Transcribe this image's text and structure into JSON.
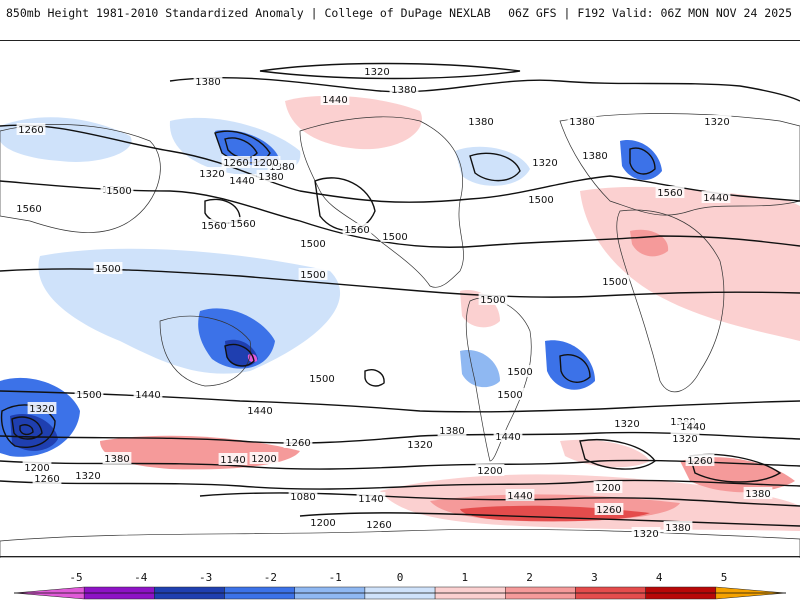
{
  "header": {
    "left_title": "850mb Height 1981-2010 Standardized Anomaly | College of DuPage NEXLAB",
    "right_title": "06Z GFS | F192 Valid: 06Z MON NOV 24 2025"
  },
  "colorbar": {
    "ticks": [
      "-5",
      "-4",
      "-3",
      "-2",
      "-1",
      "0",
      "1",
      "2",
      "3",
      "4",
      "5"
    ],
    "colors": [
      "#e05ad8",
      "#8e12c6",
      "#1f3fb0",
      "#3c72e8",
      "#8fb8f2",
      "#cfe2fa",
      "#fbd0d0",
      "#f59a9a",
      "#e44c4c",
      "#b80808",
      "#f5a200"
    ]
  },
  "map": {
    "contour_labels": [
      "1320",
      "1380",
      "1380",
      "1260",
      "1380",
      "1440",
      "1560",
      "1500",
      "1260",
      "1200",
      "1320",
      "1440",
      "1380",
      "1560",
      "1560",
      "1500",
      "1500",
      "1500",
      "1500",
      "1380",
      "1320",
      "1500",
      "1380",
      "1320",
      "1560",
      "1440",
      "1380",
      "1560",
      "1500",
      "1500",
      "1500",
      "1500",
      "1500",
      "1440",
      "1500",
      "1500",
      "1440",
      "1320",
      "1380",
      "1320",
      "1440",
      "1380",
      "1200",
      "1320",
      "1260",
      "1200",
      "1260",
      "1140",
      "1080",
      "1140",
      "1200",
      "1260",
      "1380",
      "1320",
      "1200",
      "1260",
      "1380",
      "1440",
      "1320",
      "1260",
      "1200",
      "1380",
      "1320",
      "1440"
    ]
  }
}
